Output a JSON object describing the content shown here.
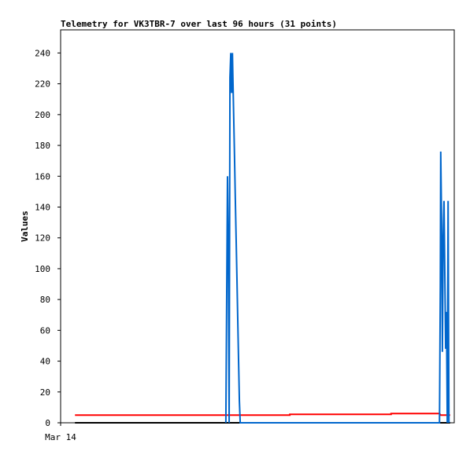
{
  "chart_data": {
    "type": "line",
    "title": "Telemetry for VK3TBR-7 over last 96 hours (31 points)",
    "y_label": "Values",
    "xlim": [
      0,
      96
    ],
    "xticks": [
      {
        "value": 0,
        "label": "Mar 14"
      }
    ],
    "ylim": [
      0,
      255
    ],
    "yticks": [
      0,
      20,
      40,
      60,
      80,
      100,
      120,
      140,
      160,
      180,
      200,
      220,
      240
    ],
    "series": [
      {
        "color": "#000000",
        "x": [
          3.5,
          95.0
        ],
        "values": [
          0,
          0
        ]
      },
      {
        "color": "#ff0000",
        "x": [
          3.5,
          55.9,
          55.9,
          80.6,
          80.6,
          92.4,
          92.7,
          95.0
        ],
        "values": [
          5,
          5,
          5.5,
          5.5,
          6,
          6,
          5,
          5
        ]
      },
      {
        "color": "#0066cc",
        "x": [
          40.3,
          40.5,
          40.7,
          40.9,
          41.1,
          41.3,
          41.5,
          41.7,
          41.9,
          42.0,
          42.2,
          42.4,
          42.6,
          42.8,
          43.0,
          43.2,
          43.4,
          43.6,
          43.8,
          92.4,
          92.6,
          92.7,
          92.9,
          93.1,
          93.3,
          93.5,
          93.9,
          94.1,
          94.3,
          94.5,
          94.7
        ],
        "values": [
          0,
          80,
          160,
          112,
          0,
          224,
          240,
          214,
          240,
          226,
          200,
          174,
          146,
          120,
          94,
          67,
          40,
          14,
          0,
          0,
          88,
          176,
          132,
          46,
          120,
          144,
          48,
          72,
          0,
          144,
          0
        ]
      }
    ]
  }
}
